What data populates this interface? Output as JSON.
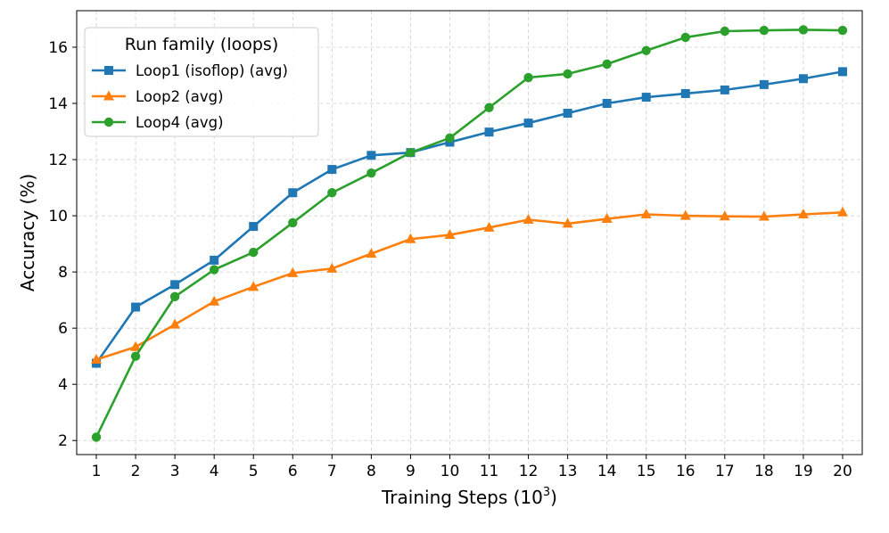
{
  "chart_data": {
    "type": "line",
    "title": "",
    "xlabel": "Training Steps (10",
    "xlabel_sup": "3",
    "xlabel_close": ")",
    "ylabel": "Accuracy (%)",
    "x": [
      1,
      2,
      3,
      4,
      5,
      6,
      7,
      8,
      9,
      10,
      11,
      12,
      13,
      14,
      15,
      16,
      17,
      18,
      19,
      20
    ],
    "xticks": [
      "1",
      "2",
      "3",
      "4",
      "5",
      "6",
      "7",
      "8",
      "9",
      "10",
      "11",
      "12",
      "13",
      "14",
      "15",
      "16",
      "17",
      "18",
      "19",
      "20"
    ],
    "yticks": [
      2,
      4,
      6,
      8,
      10,
      12,
      14,
      16
    ],
    "xlim": [
      0.5,
      20.5
    ],
    "ylim": [
      1.5,
      17.3
    ],
    "grid": true,
    "legend": {
      "title": "Run family (loops)",
      "placement": "top-left"
    },
    "series": [
      {
        "name": "Loop1 (isoflop) (avg)",
        "color": "#1f77b4",
        "marker": "square",
        "values": [
          4.75,
          6.75,
          7.55,
          8.42,
          9.62,
          10.82,
          11.65,
          12.15,
          12.25,
          12.62,
          12.98,
          13.3,
          13.65,
          14.0,
          14.22,
          14.35,
          14.48,
          14.67,
          14.88,
          15.13
        ]
      },
      {
        "name": "Loop2 (avg)",
        "color": "#ff7f0e",
        "marker": "triangle",
        "values": [
          4.88,
          5.33,
          6.13,
          6.95,
          7.47,
          7.96,
          8.12,
          8.65,
          9.17,
          9.32,
          9.58,
          9.86,
          9.72,
          9.89,
          10.05,
          10.0,
          9.98,
          9.97,
          10.05,
          10.12
        ]
      },
      {
        "name": "Loop4 (avg)",
        "color": "#2ca02c",
        "marker": "circle",
        "values": [
          2.12,
          5.0,
          7.12,
          8.08,
          8.7,
          9.75,
          10.82,
          11.52,
          12.25,
          12.77,
          13.85,
          14.92,
          15.05,
          15.4,
          15.88,
          16.35,
          16.57,
          16.6,
          16.62,
          16.6
        ]
      }
    ]
  }
}
